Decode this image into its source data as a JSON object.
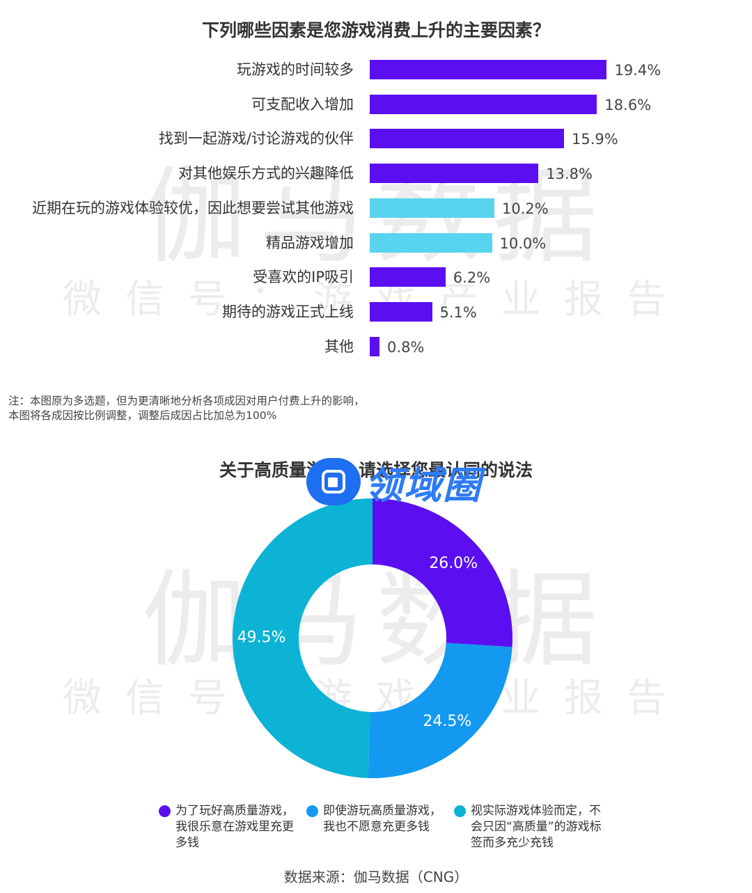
{
  "watermark": {
    "main": "伽马数据",
    "sub": "微信号：游戏产业报告"
  },
  "bar_title": "下列哪些因素是您游戏消费上升的主要因素？",
  "note": [
    "注：本图原为多选题，但为更清晰地分析各项成因对用户付费上升的影响，",
    "本图将各成因按比例调整，调整后成因占比加总为100%"
  ],
  "donut_title": "关于高质量游戏，请选择您最认同的说法",
  "badge": {
    "text": "领域圈",
    "icon": "app-logo-icon"
  },
  "legend": [
    "为了玩好高质量游戏，我很乐意在游戏里充更多钱",
    "即使游玩高质量游戏，我也不愿意充更多钱",
    "视实际游戏体验而定，不会只因“高质量”的游戏标签而多充少充钱"
  ],
  "source": "数据来源：伽马数据（CNG）",
  "colors": {
    "purple": "#5b0ff0",
    "cyan": "#59d4ee",
    "blue": "#1399f0",
    "teal": "#0db3d4"
  },
  "chart_data": [
    {
      "type": "bar",
      "orientation": "horizontal",
      "title": "下列哪些因素是您游戏消费上升的主要因素？",
      "categories": [
        "玩游戏的时间较多",
        "可支配收入增加",
        "找到一起游戏/讨论游戏的伙伴",
        "对其他娱乐方式的兴趣降低",
        "近期在玩的游戏体验较优，因此想要尝试其他游戏",
        "精品游戏增加",
        "受喜欢的IP吸引",
        "期待的游戏正式上线",
        "其他"
      ],
      "values": [
        19.4,
        18.6,
        15.9,
        13.8,
        10.2,
        10.0,
        6.2,
        5.1,
        0.8
      ],
      "value_labels": [
        "19.4%",
        "18.6%",
        "15.9%",
        "13.8%",
        "10.2%",
        "10.0%",
        "6.2%",
        "5.1%",
        "0.8%"
      ],
      "bar_colors": [
        "#5b0ff0",
        "#5b0ff0",
        "#5b0ff0",
        "#5b0ff0",
        "#59d4ee",
        "#59d4ee",
        "#5b0ff0",
        "#5b0ff0",
        "#5b0ff0"
      ],
      "unit": "%"
    },
    {
      "type": "pie",
      "title": "关于高质量游戏，请选择您最认同的说法",
      "categories": [
        "为了玩好高质量游戏，我很乐意在游戏里充更多钱",
        "即使游玩高质量游戏，我也不愿意充更多钱",
        "视实际游戏体验而定，不会只因“高质量”的游戏标签而多充少充钱"
      ],
      "values": [
        26.0,
        24.5,
        49.5
      ],
      "value_labels": [
        "26.0%",
        "24.5%",
        "49.5%"
      ],
      "colors": [
        "#5b0ff0",
        "#1399f0",
        "#0db3d4"
      ],
      "donut": true,
      "legend_position": "bottom"
    }
  ]
}
